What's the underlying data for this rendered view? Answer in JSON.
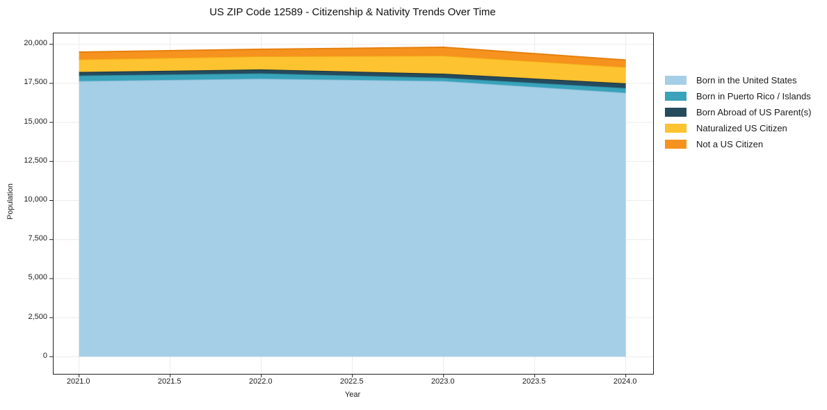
{
  "title": "US ZIP Code 12589 - Citizenship & Nativity Trends Over Time",
  "chart_data": {
    "type": "area",
    "stacked": true,
    "title": "US ZIP Code 12589 - Citizenship & Nativity Trends Over Time",
    "xlabel": "Year",
    "ylabel": "Population",
    "x": [
      2021,
      2022,
      2023,
      2024
    ],
    "xlim": [
      2020.86,
      2024.15
    ],
    "ylim": [
      -1100,
      20700
    ],
    "grid": true,
    "legend_position": "right-outside",
    "xticks": {
      "values": [
        2021.0,
        2021.5,
        2022.0,
        2022.5,
        2023.0,
        2023.5,
        2024.0
      ],
      "labels": [
        "2021.0",
        "2021.5",
        "2022.0",
        "2022.5",
        "2023.0",
        "2023.5",
        "2024.0"
      ]
    },
    "yticks": {
      "values": [
        0,
        2500,
        5000,
        7500,
        10000,
        12500,
        15000,
        17500,
        20000
      ],
      "labels": [
        "0",
        "2,500",
        "5,000",
        "7,500",
        "10,000",
        "12,500",
        "15,000",
        "17,500",
        "20,000"
      ]
    },
    "series": [
      {
        "label": "Born in the United States",
        "color": "#a5cfe6",
        "edge_color": "#7db7d5",
        "values": [
          17650,
          17800,
          17650,
          16900
        ]
      },
      {
        "label": "Born in Puerto Rico / Islands",
        "color": "#38a3b9",
        "edge_color": "#2a8aa0",
        "values": [
          350,
          340,
          210,
          300
        ]
      },
      {
        "label": "Born Abroad of US Parent(s)",
        "color": "#254b5d",
        "edge_color": "#19333f",
        "values": [
          230,
          250,
          260,
          300
        ]
      },
      {
        "label": "Naturalized US Citizen",
        "color": "#fdc330",
        "edge_color": "#f3ab15",
        "values": [
          800,
          840,
          1150,
          1040
        ]
      },
      {
        "label": "Not a US Citizen",
        "color": "#f6921e",
        "edge_color": "#e6800e",
        "values": [
          470,
          450,
          540,
          450
        ]
      }
    ],
    "totals": [
      19500,
      19680,
      19810,
      19000
    ]
  },
  "colors": {
    "background": "#ffffff",
    "spine": "#1f1f1f",
    "grid": "#ebebeb",
    "text": "#1a1a1a"
  }
}
